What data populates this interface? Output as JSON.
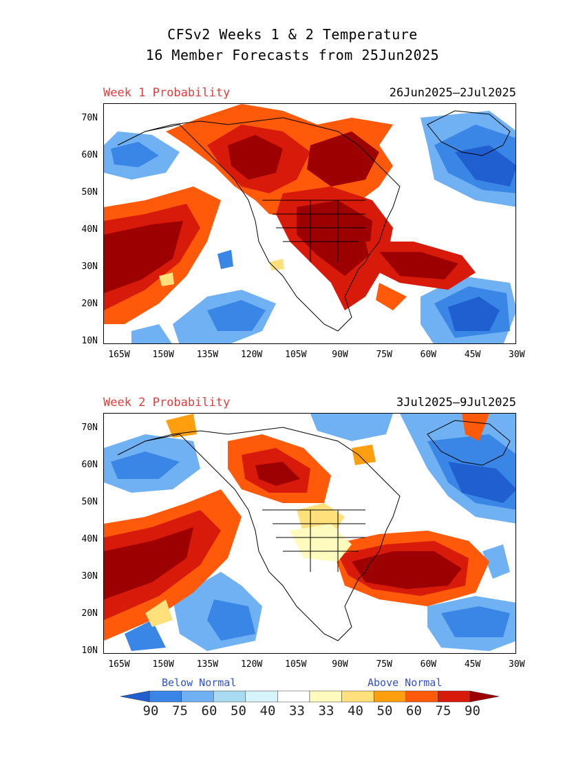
{
  "header": {
    "line1": "CFSv2 Weeks 1 & 2 Temperature",
    "line2": "16 Member Forecasts from 25Jun2025"
  },
  "panels": [
    {
      "label": "Week 1 Probability",
      "dates": "26Jun2025—2Jul2025"
    },
    {
      "label": "Week 2 Probability",
      "dates": "3Jul2025—9Jul2025"
    }
  ],
  "axes": {
    "lat_labels": [
      "70N",
      "60N",
      "50N",
      "40N",
      "30N",
      "20N",
      "10N"
    ],
    "lon_labels": [
      "165W",
      "150W",
      "135W",
      "120W",
      "105W",
      "90W",
      "75W",
      "60W",
      "45W",
      "30W"
    ]
  },
  "legend": {
    "below_label": "Below Normal",
    "above_label": "Above Normal",
    "values": [
      "90",
      "75",
      "60",
      "50",
      "40",
      "33",
      "33",
      "40",
      "50",
      "60",
      "75",
      "90"
    ],
    "colors": [
      "#1f5fd0",
      "#3a86e6",
      "#6fb1f2",
      "#a9dcf3",
      "#d8f4fb",
      "#ffffff",
      "#fffbbf",
      "#ffe07a",
      "#ff9f10",
      "#ff5a0a",
      "#d81a0a",
      "#9c0000"
    ]
  }
}
